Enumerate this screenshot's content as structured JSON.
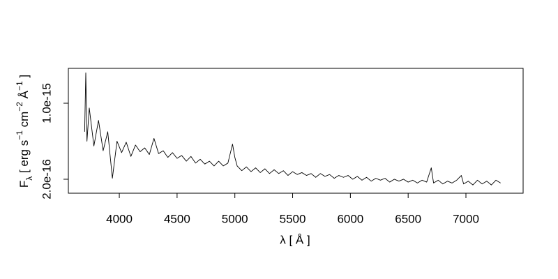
{
  "chart_data": {
    "type": "line",
    "xlabel": "λ [ Å ]",
    "ylabel": [
      {
        "text": "F"
      },
      {
        "text": "λ",
        "shift": "sub"
      },
      {
        "text": " [ erg s"
      },
      {
        "text": "−1",
        "shift": "sup"
      },
      {
        "text": " cm"
      },
      {
        "text": "−2",
        "shift": "sup"
      },
      {
        "text": " Å"
      },
      {
        "text": "−1",
        "shift": "sup"
      },
      {
        "text": " ]"
      }
    ],
    "xlim": [
      3559,
      7495
    ],
    "ylim": [
      5.3e-17,
      1.367e-15
    ],
    "xticks": [
      4000,
      4500,
      5000,
      5500,
      6000,
      6500,
      7000
    ],
    "yticks": [
      {
        "value": 2e-16,
        "label": "2.0e-16"
      },
      {
        "value": 1e-15,
        "label": "1.0e-15"
      }
    ],
    "color": "#000000",
    "x": [
      3700,
      3710,
      3720,
      3740,
      3780,
      3820,
      3860,
      3900,
      3940,
      3980,
      4020,
      4060,
      4100,
      4140,
      4180,
      4220,
      4260,
      4300,
      4340,
      4380,
      4420,
      4460,
      4500,
      4540,
      4580,
      4620,
      4660,
      4700,
      4740,
      4780,
      4820,
      4860,
      4900,
      4940,
      4980,
      5000,
      5020,
      5060,
      5100,
      5140,
      5180,
      5220,
      5260,
      5300,
      5340,
      5380,
      5420,
      5460,
      5500,
      5540,
      5580,
      5620,
      5660,
      5700,
      5740,
      5780,
      5820,
      5860,
      5900,
      5940,
      5980,
      6020,
      6060,
      6100,
      6140,
      6180,
      6220,
      6260,
      6300,
      6340,
      6380,
      6420,
      6460,
      6500,
      6540,
      6580,
      6620,
      6660,
      6700,
      6720,
      6760,
      6800,
      6840,
      6880,
      6920,
      6960,
      6980,
      7020,
      7060,
      7100,
      7140,
      7180,
      7220,
      7260,
      7300
    ],
    "values": [
      7e-16,
      1.32e-15,
      6e-16,
      9.5e-16,
      5.5e-16,
      8.2e-16,
      5e-16,
      7e-16,
      2.1e-16,
      6e-16,
      4.8e-16,
      5.9e-16,
      4.4e-16,
      5.6e-16,
      4.9e-16,
      5.3e-16,
      4.6e-16,
      6.3e-16,
      4.7e-16,
      5e-16,
      4.3e-16,
      4.8e-16,
      4.2e-16,
      4.5e-16,
      3.9e-16,
      4.4e-16,
      3.7e-16,
      4.1e-16,
      3.6e-16,
      3.9e-16,
      3.4e-16,
      3.9e-16,
      3.4e-16,
      3.7e-16,
      5.7e-16,
      4.3e-16,
      3.4e-16,
      2.9e-16,
      3.3e-16,
      2.8e-16,
      3.2e-16,
      2.7e-16,
      3.1e-16,
      2.6e-16,
      3e-16,
      2.6e-16,
      2.9e-16,
      2.4e-16,
      2.8e-16,
      2.5e-16,
      2.7e-16,
      2.4e-16,
      2.6e-16,
      2.2e-16,
      2.6e-16,
      2.3e-16,
      2.5e-16,
      2.1e-16,
      2.4e-16,
      2.2e-16,
      2.4e-16,
      2e-16,
      2.3e-16,
      1.9e-16,
      2.2e-16,
      1.8e-16,
      2.1e-16,
      1.9e-16,
      2.1e-16,
      1.7e-16,
      2e-16,
      1.8e-16,
      2e-16,
      1.7e-16,
      1.9e-16,
      1.6e-16,
      1.9e-16,
      1.7e-16,
      3.2e-16,
      1.6e-16,
      1.9e-16,
      1.5e-16,
      1.8e-16,
      1.6e-16,
      1.9e-16,
      2.4e-16,
      1.5e-16,
      1.8e-16,
      1.4e-16,
      1.9e-16,
      1.5e-16,
      1.8e-16,
      1.4e-16,
      1.9e-16,
      1.6e-16
    ]
  }
}
